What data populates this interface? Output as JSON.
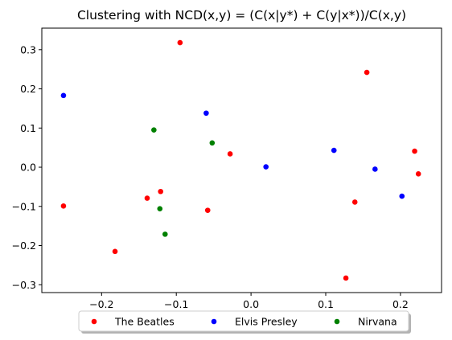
{
  "chart_data": {
    "type": "scatter",
    "title": "Clustering with NCD(x,y) = (C(x|y*) + C(y|x*))/C(x,y)",
    "xlabel": "",
    "ylabel": "",
    "xlim": [
      -0.28,
      0.255
    ],
    "ylim": [
      -0.32,
      0.355
    ],
    "xticks": [
      -0.2,
      -0.1,
      0.0,
      0.1,
      0.2
    ],
    "xtick_labels": [
      "−0.2",
      "−0.1",
      "0.0",
      "0.1",
      "0.2"
    ],
    "yticks": [
      -0.3,
      -0.2,
      -0.1,
      0.0,
      0.1,
      0.2,
      0.3
    ],
    "ytick_labels": [
      "−0.3",
      "−0.2",
      "−0.1",
      "0.0",
      "0.1",
      "0.2",
      "0.3"
    ],
    "grid": false,
    "legend_position": "bottom-center-outside",
    "series": [
      {
        "name": "The Beatles",
        "color": "#ff0000",
        "points": [
          {
            "x": -0.095,
            "y": 0.318
          },
          {
            "x": 0.155,
            "y": 0.242
          },
          {
            "x": -0.028,
            "y": 0.034
          },
          {
            "x": 0.219,
            "y": 0.041
          },
          {
            "x": 0.224,
            "y": -0.017
          },
          {
            "x": -0.121,
            "y": -0.062
          },
          {
            "x": -0.139,
            "y": -0.079
          },
          {
            "x": 0.139,
            "y": -0.089
          },
          {
            "x": -0.251,
            "y": -0.099
          },
          {
            "x": -0.058,
            "y": -0.11
          },
          {
            "x": -0.182,
            "y": -0.215
          },
          {
            "x": 0.127,
            "y": -0.283
          }
        ]
      },
      {
        "name": "Elvis Presley",
        "color": "#0000ff",
        "points": [
          {
            "x": -0.251,
            "y": 0.183
          },
          {
            "x": -0.06,
            "y": 0.138
          },
          {
            "x": 0.111,
            "y": 0.043
          },
          {
            "x": 0.02,
            "y": 0.001
          },
          {
            "x": 0.166,
            "y": -0.005
          },
          {
            "x": 0.202,
            "y": -0.074
          }
        ]
      },
      {
        "name": "Nirvana",
        "color": "#008000",
        "points": [
          {
            "x": -0.13,
            "y": 0.095
          },
          {
            "x": -0.052,
            "y": 0.062
          },
          {
            "x": -0.122,
            "y": -0.106
          },
          {
            "x": -0.115,
            "y": -0.171
          }
        ]
      }
    ]
  }
}
